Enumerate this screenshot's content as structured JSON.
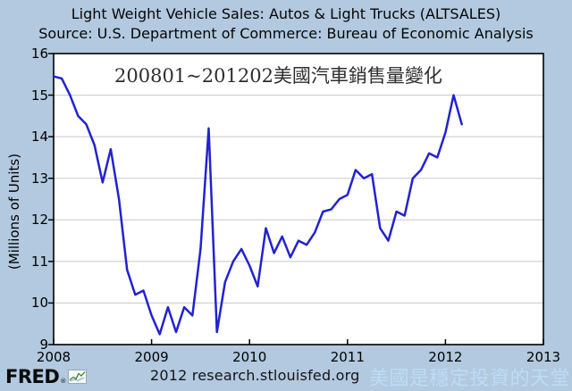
{
  "header": {
    "title": "Light Weight Vehicle Sales: Autos & Light Trucks (ALTSALES)",
    "subtitle": "Source: U.S. Department of Commerce: Bureau of Economic Analysis"
  },
  "chart_data": {
    "type": "line",
    "title": "Light Weight Vehicle Sales: Autos & Light Trucks (ALTSALES)",
    "source_line": "Source: U.S. Department of Commerce: Bureau of Economic Analysis",
    "ylabel": "(Millions of Units)",
    "annotation": "200801~201202美國汽車銷售量變化",
    "x_tick_labels": [
      "2008",
      "2009",
      "2010",
      "2011",
      "2012",
      "2013"
    ],
    "y_tick_labels": [
      "9",
      "10",
      "11",
      "12",
      "13",
      "14",
      "15",
      "16"
    ],
    "xlim_years": [
      2008,
      2013
    ],
    "ylim": [
      9,
      16
    ],
    "grid": "horizontal",
    "legend_position": "none",
    "line_color": "#2222d0",
    "series": [
      {
        "name": "ALTSALES",
        "frequency": "monthly",
        "start": "2008-01",
        "end": "2012-03",
        "values": [
          15.45,
          15.4,
          15.0,
          14.5,
          14.3,
          13.8,
          12.9,
          13.7,
          12.5,
          10.8,
          10.2,
          10.3,
          9.7,
          9.25,
          9.9,
          9.3,
          9.9,
          9.7,
          11.3,
          14.2,
          9.3,
          10.5,
          11.0,
          11.3,
          10.9,
          10.4,
          11.8,
          11.2,
          11.6,
          11.1,
          11.5,
          11.4,
          11.7,
          12.2,
          12.25,
          12.5,
          12.6,
          13.2,
          13.0,
          13.1,
          11.8,
          11.5,
          12.2,
          12.1,
          13.0,
          13.2,
          13.6,
          13.5,
          14.1,
          15.0,
          14.3
        ]
      }
    ]
  },
  "footer": {
    "logo_text": "FRED",
    "logo_reg_mark": "®",
    "logo_icon": "sparkline-chart-icon",
    "credit": "2012 research.stlouisfed.org",
    "watermark": "美國是穩定投資的天堂"
  },
  "colors": {
    "background": "#b2c9df",
    "plot_background": "#ffffff",
    "line": "#2222d0",
    "gridline": "#c8c8c8",
    "axis": "#000000",
    "watermark": "#bedef8"
  }
}
